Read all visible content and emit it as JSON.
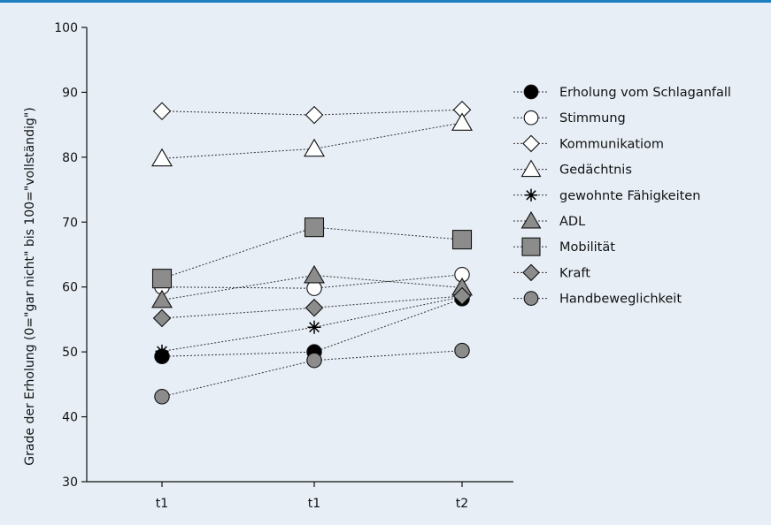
{
  "chart_data": {
    "type": "line",
    "categories": [
      "t1",
      "t1",
      "t2"
    ],
    "ylabel": "Grade der Erholung (0=\"gar nicht\" bis 100=\"vollständig\")",
    "ylim": [
      30,
      100
    ],
    "yticks": [
      30,
      40,
      50,
      60,
      70,
      80,
      90,
      100
    ],
    "grid": false,
    "legend_position": "right",
    "series": [
      {
        "name": "Erholung vom Schlaganfall",
        "marker": "circle",
        "fill": "#000000",
        "values": [
          49.3,
          50,
          58.2
        ]
      },
      {
        "name": "Stimmung",
        "marker": "circle",
        "fill": "#ffffff",
        "values": [
          60,
          59.8,
          61.9
        ]
      },
      {
        "name": "Kommunikatiom",
        "marker": "diamond",
        "fill": "#ffffff",
        "values": [
          87.1,
          86.5,
          87.3
        ]
      },
      {
        "name": "Gedächtnis",
        "marker": "triangle",
        "fill": "#ffffff",
        "values": [
          79.8,
          81.3,
          85.3
        ]
      },
      {
        "name": "gewohnte Fähigkeiten",
        "marker": "star",
        "fill": "#000000",
        "values": [
          50.1,
          53.8,
          58.5
        ]
      },
      {
        "name": "ADL",
        "marker": "triangle",
        "fill": "#8c8c8c",
        "values": [
          58,
          61.8,
          59.9
        ]
      },
      {
        "name": "Mobilität",
        "marker": "square",
        "fill": "#8c8c8c",
        "values": [
          61.3,
          69.2,
          67.3
        ]
      },
      {
        "name": "Kraft",
        "marker": "diamond",
        "fill": "#8c8c8c",
        "values": [
          55.2,
          56.8,
          58.6
        ]
      },
      {
        "name": "Handbeweglichkeit",
        "marker": "circle",
        "fill": "#8c8c8c",
        "values": [
          43.1,
          48.7,
          50.2
        ]
      }
    ]
  }
}
